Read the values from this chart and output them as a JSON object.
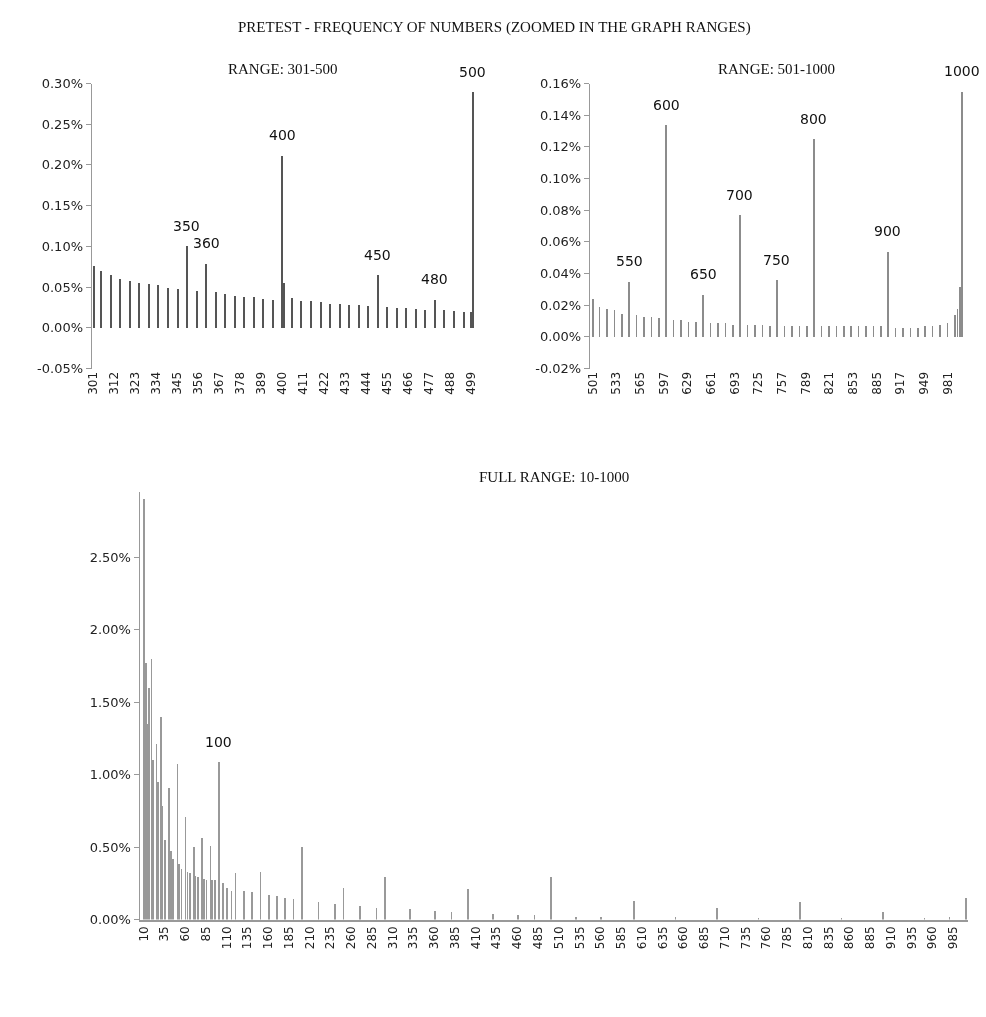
{
  "chart_data": [
    {
      "type": "bar",
      "title": "RANGE: 301-500",
      "color": "#555555",
      "x": [
        301,
        305,
        310,
        315,
        320,
        325,
        330,
        335,
        340,
        345,
        350,
        355,
        360,
        365,
        370,
        375,
        380,
        385,
        390,
        395,
        400,
        401,
        405,
        410,
        415,
        420,
        425,
        430,
        435,
        440,
        445,
        450,
        455,
        460,
        465,
        470,
        475,
        480,
        485,
        490,
        495,
        499,
        500
      ],
      "values": [
        0.077,
        0.07,
        0.066,
        0.06,
        0.058,
        0.056,
        0.055,
        0.053,
        0.05,
        0.048,
        0.101,
        0.046,
        0.079,
        0.044,
        0.042,
        0.04,
        0.039,
        0.038,
        0.036,
        0.035,
        0.212,
        0.056,
        0.037,
        0.034,
        0.033,
        0.032,
        0.03,
        0.03,
        0.029,
        0.028,
        0.027,
        0.065,
        0.026,
        0.025,
        0.025,
        0.024,
        0.023,
        0.035,
        0.022,
        0.021,
        0.02,
        0.02,
        0.29
      ],
      "xlim": [
        300,
        501
      ],
      "xticks": [
        301,
        312,
        323,
        334,
        345,
        356,
        367,
        378,
        389,
        400,
        411,
        422,
        433,
        444,
        455,
        466,
        477,
        488,
        499
      ],
      "ylim": [
        -0.05,
        0.3
      ],
      "yticks": [
        {
          "value": -0.05,
          "label": "-0.05%"
        },
        {
          "value": 0,
          "label": "0.00%"
        },
        {
          "value": 0.05,
          "label": "0.05%"
        },
        {
          "value": 0.1,
          "label": "0.10%"
        },
        {
          "value": 0.15,
          "label": "0.15%"
        },
        {
          "value": 0.2,
          "label": "0.20%"
        },
        {
          "value": 0.25,
          "label": "0.25%"
        },
        {
          "value": 0.3,
          "label": "0.30%"
        }
      ],
      "annotations": [
        "PRETEST - FREQUENCY OF NUMBERS (ZOOMED IN THE GRAPH RANGES)",
        {
          "text": "350",
          "x": 350,
          "y": 0.101
        },
        {
          "text": "360",
          "x": 360,
          "y": 0.079
        },
        {
          "text": "400",
          "x": 400,
          "y": 0.212
        },
        {
          "text": "450",
          "x": 450,
          "y": 0.065
        },
        {
          "text": "480",
          "x": 480,
          "y": 0.035
        },
        {
          "text": "500",
          "x": 500,
          "y": 0.29
        }
      ]
    },
    {
      "type": "bar",
      "title": "RANGE: 501-1000",
      "color": "#8c8c8c",
      "x": [
        501,
        510,
        520,
        530,
        540,
        550,
        560,
        570,
        580,
        590,
        600,
        610,
        620,
        630,
        640,
        650,
        660,
        670,
        680,
        690,
        700,
        710,
        720,
        730,
        740,
        750,
        760,
        770,
        780,
        790,
        800,
        810,
        820,
        830,
        840,
        850,
        860,
        870,
        880,
        890,
        900,
        910,
        920,
        930,
        940,
        950,
        960,
        970,
        980,
        990,
        994,
        997,
        1000
      ],
      "values": [
        0.024,
        0.019,
        0.018,
        0.017,
        0.015,
        0.035,
        0.014,
        0.013,
        0.013,
        0.012,
        0.134,
        0.011,
        0.011,
        0.01,
        0.01,
        0.027,
        0.009,
        0.009,
        0.009,
        0.008,
        0.077,
        0.008,
        0.008,
        0.008,
        0.007,
        0.036,
        0.007,
        0.007,
        0.007,
        0.007,
        0.125,
        0.007,
        0.007,
        0.007,
        0.007,
        0.007,
        0.007,
        0.007,
        0.007,
        0.007,
        0.054,
        0.006,
        0.006,
        0.006,
        0.006,
        0.007,
        0.007,
        0.008,
        0.009,
        0.014,
        0.018,
        0.032,
        0.155
      ],
      "xlim": [
        497,
        1002
      ],
      "xticks": [
        501,
        533,
        565,
        597,
        629,
        661,
        693,
        725,
        757,
        789,
        821,
        853,
        885,
        917,
        949,
        981
      ],
      "ylim": [
        -0.02,
        0.16
      ],
      "yticks": [
        {
          "value": -0.02,
          "label": "-0.02%"
        },
        {
          "value": 0,
          "label": "0.00%"
        },
        {
          "value": 0.02,
          "label": "0.02%"
        },
        {
          "value": 0.04,
          "label": "0.04%"
        },
        {
          "value": 0.06,
          "label": "0.06%"
        },
        {
          "value": 0.08,
          "label": "0.08%"
        },
        {
          "value": 0.1,
          "label": "0.10%"
        },
        {
          "value": 0.12,
          "label": "0.12%"
        },
        {
          "value": 0.14,
          "label": "0.14%"
        },
        {
          "value": 0.16,
          "label": "0.16%"
        }
      ],
      "annotations": [
        {
          "text": "550",
          "x": 550,
          "y": 0.035
        },
        {
          "text": "600",
          "x": 600,
          "y": 0.134
        },
        {
          "text": "650",
          "x": 650,
          "y": 0.027
        },
        {
          "text": "700",
          "x": 700,
          "y": 0.077
        },
        {
          "text": "750",
          "x": 750,
          "y": 0.036
        },
        {
          "text": "800",
          "x": 800,
          "y": 0.125
        },
        {
          "text": "900",
          "x": 900,
          "y": 0.054
        },
        {
          "text": "1000",
          "x": 1000,
          "y": 0.155
        }
      ]
    },
    {
      "type": "bar",
      "title": "FULL RANGE: 10-1000",
      "color": "#999999",
      "x": [
        10,
        12,
        14,
        16,
        19,
        21,
        25,
        27,
        30,
        32,
        35,
        40,
        42,
        45,
        50,
        52,
        55,
        60,
        62,
        65,
        70,
        72,
        75,
        80,
        82,
        85,
        90,
        92,
        95,
        100,
        105,
        110,
        115,
        120,
        130,
        140,
        150,
        160,
        170,
        180,
        190,
        200,
        220,
        240,
        250,
        270,
        290,
        300,
        330,
        360,
        380,
        400,
        430,
        460,
        480,
        500,
        530,
        560,
        600,
        650,
        700,
        750,
        800,
        850,
        900,
        950,
        980,
        1000
      ],
      "values": [
        2.9,
        1.77,
        1.35,
        1.6,
        1.8,
        1.1,
        1.21,
        0.95,
        1.4,
        0.78,
        0.55,
        0.91,
        0.47,
        0.42,
        1.07,
        0.38,
        0.35,
        0.71,
        0.33,
        0.32,
        0.5,
        0.3,
        0.29,
        0.56,
        0.28,
        0.27,
        0.51,
        0.27,
        0.27,
        1.09,
        0.25,
        0.22,
        0.2,
        0.32,
        0.2,
        0.19,
        0.33,
        0.17,
        0.16,
        0.15,
        0.14,
        0.5,
        0.12,
        0.11,
        0.22,
        0.09,
        0.08,
        0.29,
        0.07,
        0.06,
        0.05,
        0.21,
        0.04,
        0.03,
        0.03,
        0.29,
        0.02,
        0.02,
        0.13,
        0.015,
        0.08,
        0.01,
        0.12,
        0.01,
        0.05,
        0.01,
        0.02,
        0.15
      ],
      "xlim": [
        5,
        1003
      ],
      "xticks": [
        10,
        35,
        60,
        85,
        110,
        135,
        160,
        185,
        210,
        235,
        260,
        285,
        310,
        335,
        360,
        385,
        410,
        435,
        460,
        485,
        510,
        535,
        560,
        585,
        610,
        635,
        660,
        685,
        710,
        735,
        760,
        785,
        810,
        835,
        860,
        885,
        910,
        935,
        960,
        985
      ],
      "ylim": [
        0,
        2.95
      ],
      "yticks": [
        {
          "value": 0,
          "label": "0.00%"
        },
        {
          "value": 0.5,
          "label": "0.50%"
        },
        {
          "value": 1,
          "label": "1.00%"
        },
        {
          "value": 1.5,
          "label": "1.50%"
        },
        {
          "value": 2,
          "label": "2.00%"
        },
        {
          "value": 2.5,
          "label": "2.50%"
        }
      ],
      "annotations": [
        {
          "text": "100",
          "x": 100,
          "y": 1.09
        }
      ]
    }
  ]
}
